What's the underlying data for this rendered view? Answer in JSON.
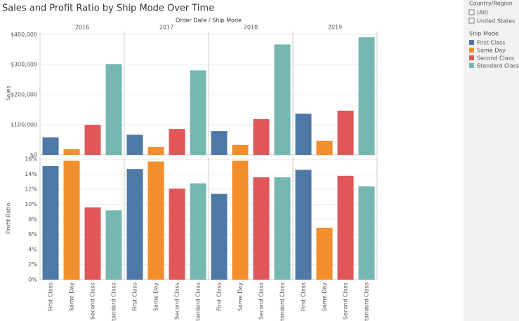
{
  "title": "Sales and Profit Ratio by Ship Mode Over Time",
  "filter": {
    "title": "Country/Region",
    "options": [
      "(All)",
      "United States"
    ]
  },
  "legend_title": "Ship Mode",
  "column_header": "Order Date / Ship Mode",
  "chart_data": [
    {
      "type": "bar",
      "y_label": "Sales",
      "categories": [
        "2016",
        "2017",
        "2018",
        "2019"
      ],
      "ylim": [
        0,
        410000
      ],
      "yticks": [
        {
          "value": 0,
          "label": "$0"
        },
        {
          "value": 100000,
          "label": "$100,000"
        },
        {
          "value": 200000,
          "label": "$200,000"
        },
        {
          "value": 300000,
          "label": "$300,000"
        },
        {
          "value": 400000,
          "label": "$400,000"
        }
      ],
      "grid": true,
      "series": [
        {
          "name": "First Class",
          "color": "#4e79a7",
          "values": [
            58000,
            67000,
            79000,
            137000
          ]
        },
        {
          "name": "Same Day",
          "color": "#f28e2b",
          "values": [
            19000,
            26000,
            33000,
            47000
          ]
        },
        {
          "name": "Second Class",
          "color": "#e15759",
          "values": [
            100000,
            86000,
            119000,
            147000
          ]
        },
        {
          "name": "Standard Class",
          "color": "#76b7b2",
          "values": [
            302000,
            281000,
            367000,
            391000
          ]
        }
      ]
    },
    {
      "type": "bar",
      "y_label": "Profit Ratio",
      "categories": [
        "2016",
        "2017",
        "2018",
        "2019"
      ],
      "ylim": [
        0,
        16.3
      ],
      "yticks": [
        {
          "value": 0,
          "label": "0%"
        },
        {
          "value": 2,
          "label": "2%"
        },
        {
          "value": 4,
          "label": "4%"
        },
        {
          "value": 6,
          "label": "6%"
        },
        {
          "value": 8,
          "label": "8%"
        },
        {
          "value": 10,
          "label": "10%"
        },
        {
          "value": 12,
          "label": "12%"
        },
        {
          "value": 14,
          "label": "14%"
        },
        {
          "value": 16,
          "label": "16%"
        }
      ],
      "grid": true,
      "series": [
        {
          "name": "First Class",
          "color": "#4e79a7",
          "values": [
            15.1,
            14.7,
            11.4,
            14.6
          ]
        },
        {
          "name": "Same Day",
          "color": "#f28e2b",
          "values": [
            15.8,
            15.7,
            15.8,
            6.9
          ]
        },
        {
          "name": "Second Class",
          "color": "#e15759",
          "values": [
            9.6,
            12.1,
            13.6,
            13.8
          ]
        },
        {
          "name": "Standard Class",
          "color": "#76b7b2",
          "values": [
            9.2,
            12.8,
            13.6,
            12.4
          ]
        }
      ]
    }
  ]
}
